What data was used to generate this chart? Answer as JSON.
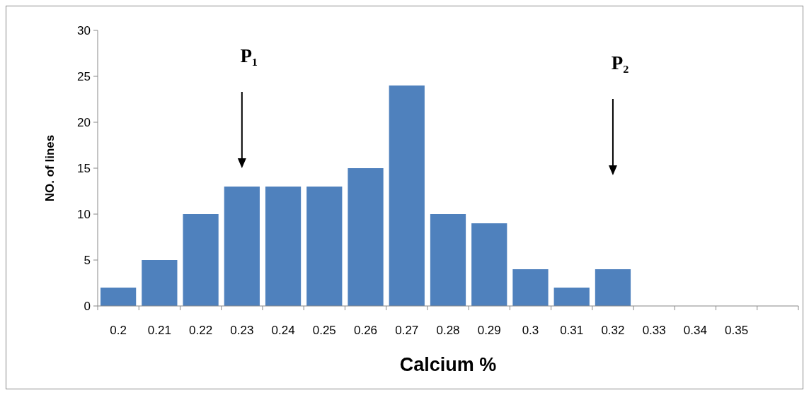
{
  "chart_data": {
    "type": "bar",
    "xlabel": "Calcium %",
    "ylabel": "NO. of lines",
    "categories": [
      "0.2",
      "0.21",
      "0.22",
      "0.23",
      "0.24",
      "0.25",
      "0.26",
      "0.27",
      "0.28",
      "0.29",
      "0.3",
      "0.31",
      "0.32",
      "0.33",
      "0.34",
      "0.35",
      null
    ],
    "values": [
      2,
      5,
      10,
      13,
      13,
      13,
      15,
      24,
      10,
      9,
      4,
      2,
      4,
      0,
      0,
      0,
      0
    ],
    "color": "#4f81bd",
    "ylim": [
      0,
      30
    ],
    "yticks": [
      0,
      5,
      10,
      15,
      20,
      25,
      30
    ],
    "grid": false,
    "annotations": [
      "P₁",
      "P₂"
    ]
  }
}
